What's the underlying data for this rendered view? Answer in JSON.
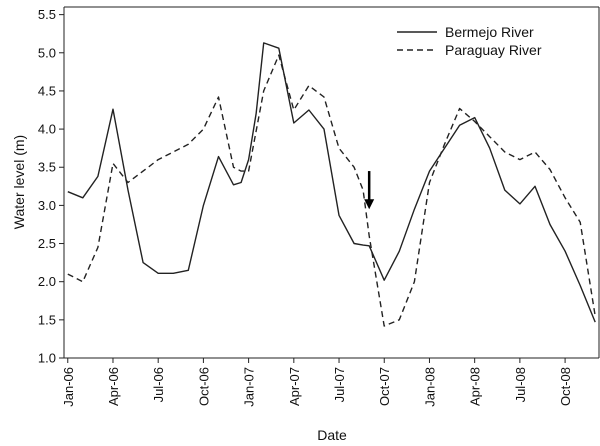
{
  "chart_data": {
    "type": "line",
    "title": "",
    "xlabel": "Date",
    "ylabel": "Water level (m)",
    "x": [
      "2006-01",
      "2006-02",
      "2006-03",
      "2006-04",
      "2006-05",
      "2006-06",
      "2006-07",
      "2006-08",
      "2006-09",
      "2006-10",
      "2006-11",
      "2006-12",
      "2007-01",
      "2007-02",
      "2007-03",
      "2007-04",
      "2007-05",
      "2007-06",
      "2007-07",
      "2007-08",
      "2007-09",
      "2007-10",
      "2007-11",
      "2007-12",
      "2008-01",
      "2008-02",
      "2008-03",
      "2008-04",
      "2008-05",
      "2008-06",
      "2008-07",
      "2008-08",
      "2008-09",
      "2008-10",
      "2008-11",
      "2008-12"
    ],
    "x_tick_labels": [
      "Jan-06",
      "Apr-06",
      "Jul-06",
      "Oct-06",
      "Jan-07",
      "Apr-07",
      "Jul-07",
      "Oct-07",
      "Jan-08",
      "Apr-08",
      "Jul-08",
      "Oct-08"
    ],
    "y_ticks": [
      "1.0",
      "1.5",
      "2.0",
      "2.5",
      "3.0",
      "3.5",
      "4.0",
      "4.5",
      "5.0",
      "5.5"
    ],
    "ylim": [
      1.0,
      5.6
    ],
    "grid": false,
    "legend_position": "top-right",
    "series": [
      {
        "name": "Bermejo River",
        "style": "solid",
        "color": "#222222",
        "x": [
          0,
          1,
          2,
          3,
          4,
          5,
          6,
          7,
          8,
          9,
          10,
          11,
          11.5,
          12,
          12.5,
          13,
          14,
          15,
          16,
          17,
          18,
          19,
          19.6,
          20,
          21,
          22,
          23,
          24,
          25,
          26,
          27,
          28,
          29,
          30,
          31,
          32,
          33,
          34,
          35
        ],
        "y": [
          3.18,
          3.1,
          3.38,
          4.26,
          3.2,
          2.25,
          2.11,
          2.11,
          2.15,
          3.0,
          3.64,
          3.27,
          3.3,
          3.6,
          4.2,
          5.13,
          5.06,
          4.08,
          4.25,
          4.0,
          2.87,
          2.5,
          2.48,
          2.47,
          2.02,
          2.4,
          2.95,
          3.45,
          3.75,
          4.05,
          4.15,
          3.75,
          3.2,
          3.02,
          3.25,
          2.75,
          2.4,
          1.95,
          1.47
        ]
      },
      {
        "name": "Paraguay River",
        "style": "dashed",
        "color": "#222222",
        "x": [
          0,
          1,
          2,
          3,
          4,
          5,
          6,
          7,
          8,
          9,
          10,
          11,
          11.5,
          12,
          13,
          14,
          15,
          16,
          17,
          18,
          19,
          19.6,
          20,
          21,
          22,
          23,
          24,
          25,
          26,
          27,
          28,
          29,
          30,
          31,
          32,
          33,
          34,
          35
        ],
        "y": [
          2.1,
          2.0,
          2.45,
          3.55,
          3.3,
          3.45,
          3.6,
          3.7,
          3.8,
          4.0,
          4.42,
          3.5,
          3.45,
          3.45,
          4.5,
          4.97,
          4.25,
          4.57,
          4.42,
          3.75,
          3.5,
          3.2,
          2.6,
          1.42,
          1.5,
          2.0,
          3.3,
          3.8,
          4.27,
          4.1,
          3.9,
          3.7,
          3.6,
          3.7,
          3.47,
          3.1,
          2.78,
          1.55
        ]
      }
    ],
    "annotations": [
      {
        "type": "arrow",
        "direction": "down",
        "x": 20.0,
        "y_from": 3.45,
        "y_to": 2.95
      }
    ]
  }
}
